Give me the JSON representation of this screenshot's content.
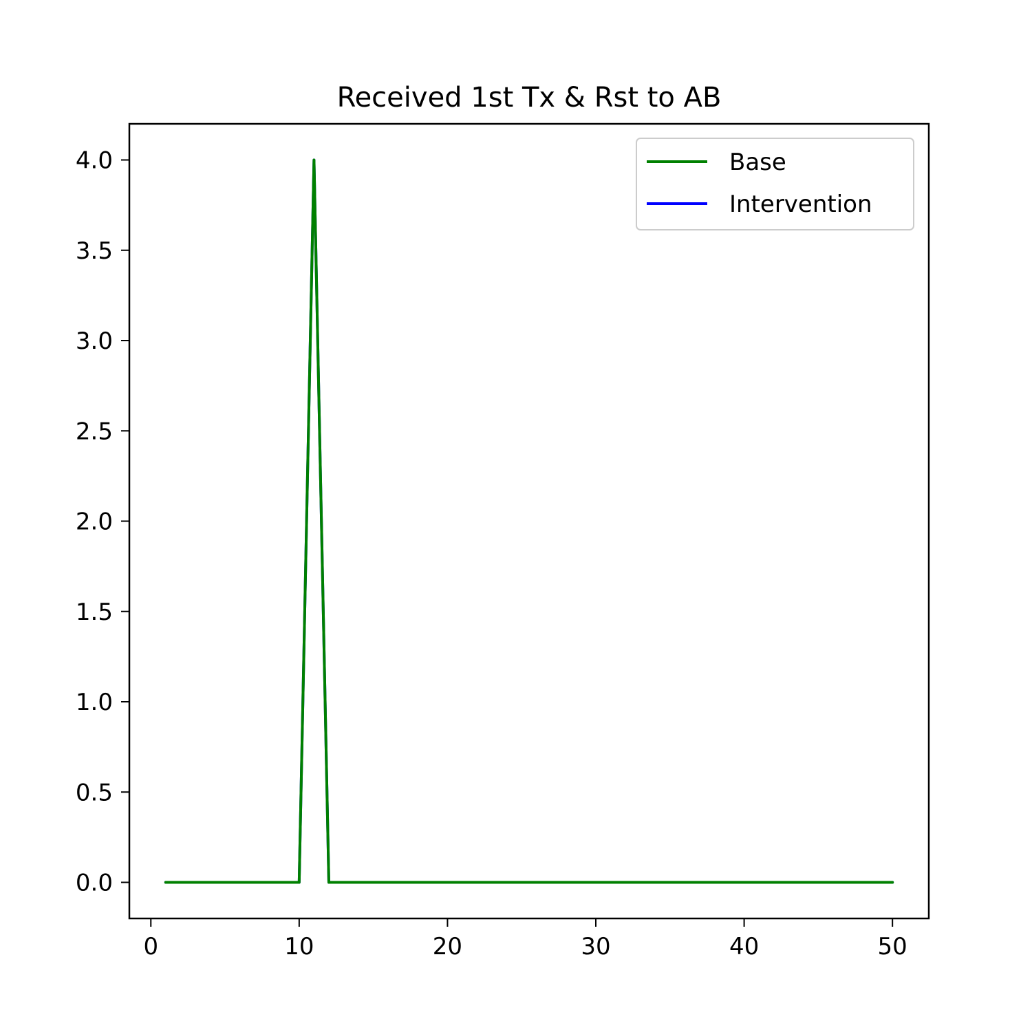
{
  "chart_data": {
    "type": "line",
    "title": "Received 1st Tx & Rst to AB",
    "xlabel": "",
    "ylabel": "",
    "xlim": [
      -1.45,
      52.45
    ],
    "ylim": [
      -0.2,
      4.2
    ],
    "xticks": [
      0,
      10,
      20,
      30,
      40,
      50
    ],
    "xtick_labels": [
      "0",
      "10",
      "20",
      "30",
      "40",
      "50"
    ],
    "yticks": [
      0.0,
      0.5,
      1.0,
      1.5,
      2.0,
      2.5,
      3.0,
      3.5,
      4.0
    ],
    "ytick_labels": [
      "0.0",
      "0.5",
      "1.0",
      "1.5",
      "2.0",
      "2.5",
      "3.0",
      "3.5",
      "4.0"
    ],
    "grid": false,
    "legend_position": "top-right",
    "series": [
      {
        "name": "Intervention",
        "color": "#0000ff",
        "x": [
          1,
          2,
          3,
          4,
          5,
          6,
          7,
          8,
          9,
          10,
          11,
          12,
          13,
          14,
          15,
          16,
          17,
          18,
          19,
          20,
          21,
          22,
          23,
          24,
          25,
          26,
          27,
          28,
          29,
          30,
          31,
          32,
          33,
          34,
          35,
          36,
          37,
          38,
          39,
          40,
          41,
          42,
          43,
          44,
          45,
          46,
          47,
          48,
          49,
          50
        ],
        "y": [
          0,
          0,
          0,
          0,
          0,
          0,
          0,
          0,
          0,
          0,
          4,
          0,
          0,
          0,
          0,
          0,
          0,
          0,
          0,
          0,
          0,
          0,
          0,
          0,
          0,
          0,
          0,
          0,
          0,
          0,
          0,
          0,
          0,
          0,
          0,
          0,
          0,
          0,
          0,
          0,
          0,
          0,
          0,
          0,
          0,
          0,
          0,
          0,
          0,
          0
        ]
      },
      {
        "name": "Base",
        "color": "#008000",
        "x": [
          1,
          2,
          3,
          4,
          5,
          6,
          7,
          8,
          9,
          10,
          11,
          12,
          13,
          14,
          15,
          16,
          17,
          18,
          19,
          20,
          21,
          22,
          23,
          24,
          25,
          26,
          27,
          28,
          29,
          30,
          31,
          32,
          33,
          34,
          35,
          36,
          37,
          38,
          39,
          40,
          41,
          42,
          43,
          44,
          45,
          46,
          47,
          48,
          49,
          50
        ],
        "y": [
          0,
          0,
          0,
          0,
          0,
          0,
          0,
          0,
          0,
          0,
          4,
          0,
          0,
          0,
          0,
          0,
          0,
          0,
          0,
          0,
          0,
          0,
          0,
          0,
          0,
          0,
          0,
          0,
          0,
          0,
          0,
          0,
          0,
          0,
          0,
          0,
          0,
          0,
          0,
          0,
          0,
          0,
          0,
          0,
          0,
          0,
          0,
          0,
          0,
          0
        ]
      }
    ],
    "legend": [
      {
        "name": "Base",
        "color": "#008000"
      },
      {
        "name": "Intervention",
        "color": "#0000ff"
      }
    ]
  }
}
